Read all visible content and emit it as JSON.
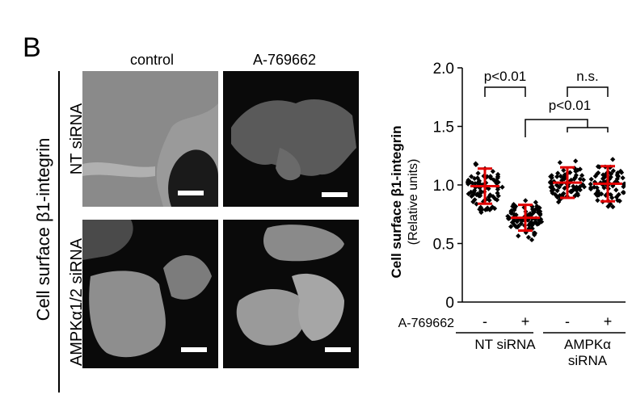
{
  "panel_letter": "B",
  "columns": [
    "control",
    "A-769662"
  ],
  "row_outer_label_prefix": "Cell surface ",
  "row_outer_label_beta": "β",
  "row_outer_label_suffix": "1-integrin",
  "rows": [
    "NT siRNA",
    "AMPKα1/2 siRNA"
  ],
  "chart_data": {
    "type": "scatter",
    "ylabel_main": "Cell surface β1-integrin",
    "ylabel_sub": "(Relative units)",
    "ylim": [
      0,
      2.0
    ],
    "yticks": [
      "0",
      "0.5",
      "1.0",
      "1.5",
      "2.0"
    ],
    "treatment_label": "A-769662",
    "groups": [
      {
        "treatment": "-",
        "group": "NT siRNA",
        "mean": 0.99,
        "sd": 0.15
      },
      {
        "treatment": "+",
        "group": "NT siRNA",
        "mean": 0.72,
        "sd": 0.11
      },
      {
        "treatment": "-",
        "group": "AMPKα siRNA",
        "mean": 1.02,
        "sd": 0.13
      },
      {
        "treatment": "+",
        "group": "AMPKα siRNA",
        "mean": 1.01,
        "sd": 0.15
      }
    ],
    "group_labels": [
      "NT siRNA",
      "AMPKα",
      "siRNA"
    ],
    "annotations": [
      "p<0.01",
      "n.s.",
      "p<0.01"
    ],
    "colors": {
      "points": "#000000",
      "mean_sd": "#e00000"
    }
  }
}
